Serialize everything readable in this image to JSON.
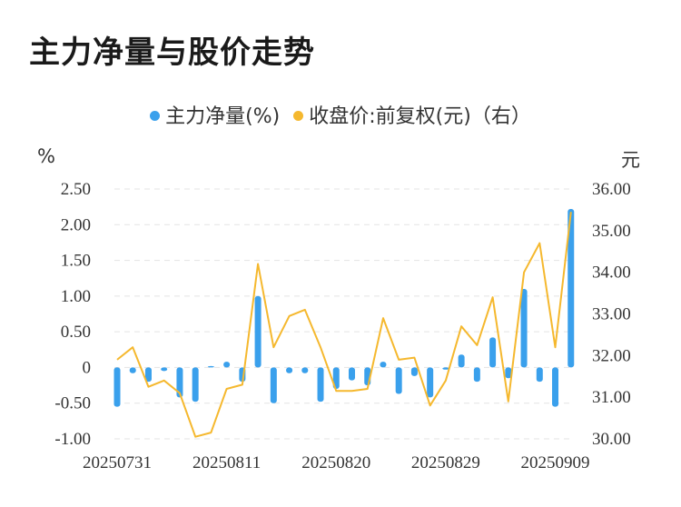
{
  "title": "主力净量与股价走势",
  "legend": {
    "series1": "主力净量(%)",
    "series2": "收盘价:前复权(元)（右）"
  },
  "colors": {
    "bar": "#3aa0ec",
    "line": "#f5b82e",
    "grid": "#e3e3e3"
  },
  "chart_data": {
    "type": "bar+line",
    "title": "主力净量与股价走势",
    "y_left_unit": "%",
    "y_right_unit": "元",
    "y_left_ticks": [
      "2.50",
      "2.00",
      "1.50",
      "1.00",
      "0.50",
      "0",
      "-0.50",
      "-1.00"
    ],
    "y_right_ticks": [
      "36.00",
      "35.00",
      "34.00",
      "33.00",
      "32.00",
      "31.00",
      "30.00"
    ],
    "ylim_left": [
      -1.0,
      2.5
    ],
    "ylim_right": [
      30.0,
      36.0
    ],
    "x_tick_labels": [
      "20250731",
      "20250811",
      "20250820",
      "20250829",
      "20250909"
    ],
    "x_tick_index": [
      0,
      7,
      14,
      21,
      28
    ],
    "grid": true,
    "legend_position": "top",
    "series": [
      {
        "name": "主力净量(%)",
        "kind": "bar",
        "axis": "left",
        "values": [
          -0.55,
          -0.08,
          -0.2,
          -0.05,
          -0.42,
          -0.48,
          0.02,
          0.08,
          -0.2,
          1.0,
          -0.5,
          -0.08,
          -0.08,
          -0.48,
          -0.3,
          -0.18,
          -0.25,
          0.08,
          -0.37,
          -0.12,
          -0.42,
          -0.03,
          0.18,
          -0.2,
          0.42,
          -0.15,
          1.1,
          -0.2,
          -0.55,
          2.22
        ]
      },
      {
        "name": "收盘价:前复权(元)（右）",
        "kind": "line",
        "axis": "right",
        "values": [
          31.9,
          32.2,
          31.25,
          31.4,
          31.1,
          30.05,
          30.15,
          31.2,
          31.3,
          34.2,
          32.2,
          32.95,
          33.1,
          32.2,
          31.15,
          31.15,
          31.2,
          32.9,
          31.9,
          31.95,
          30.8,
          31.4,
          32.7,
          32.25,
          33.4,
          30.9,
          34.0,
          34.7,
          32.2,
          35.45
        ]
      }
    ]
  }
}
